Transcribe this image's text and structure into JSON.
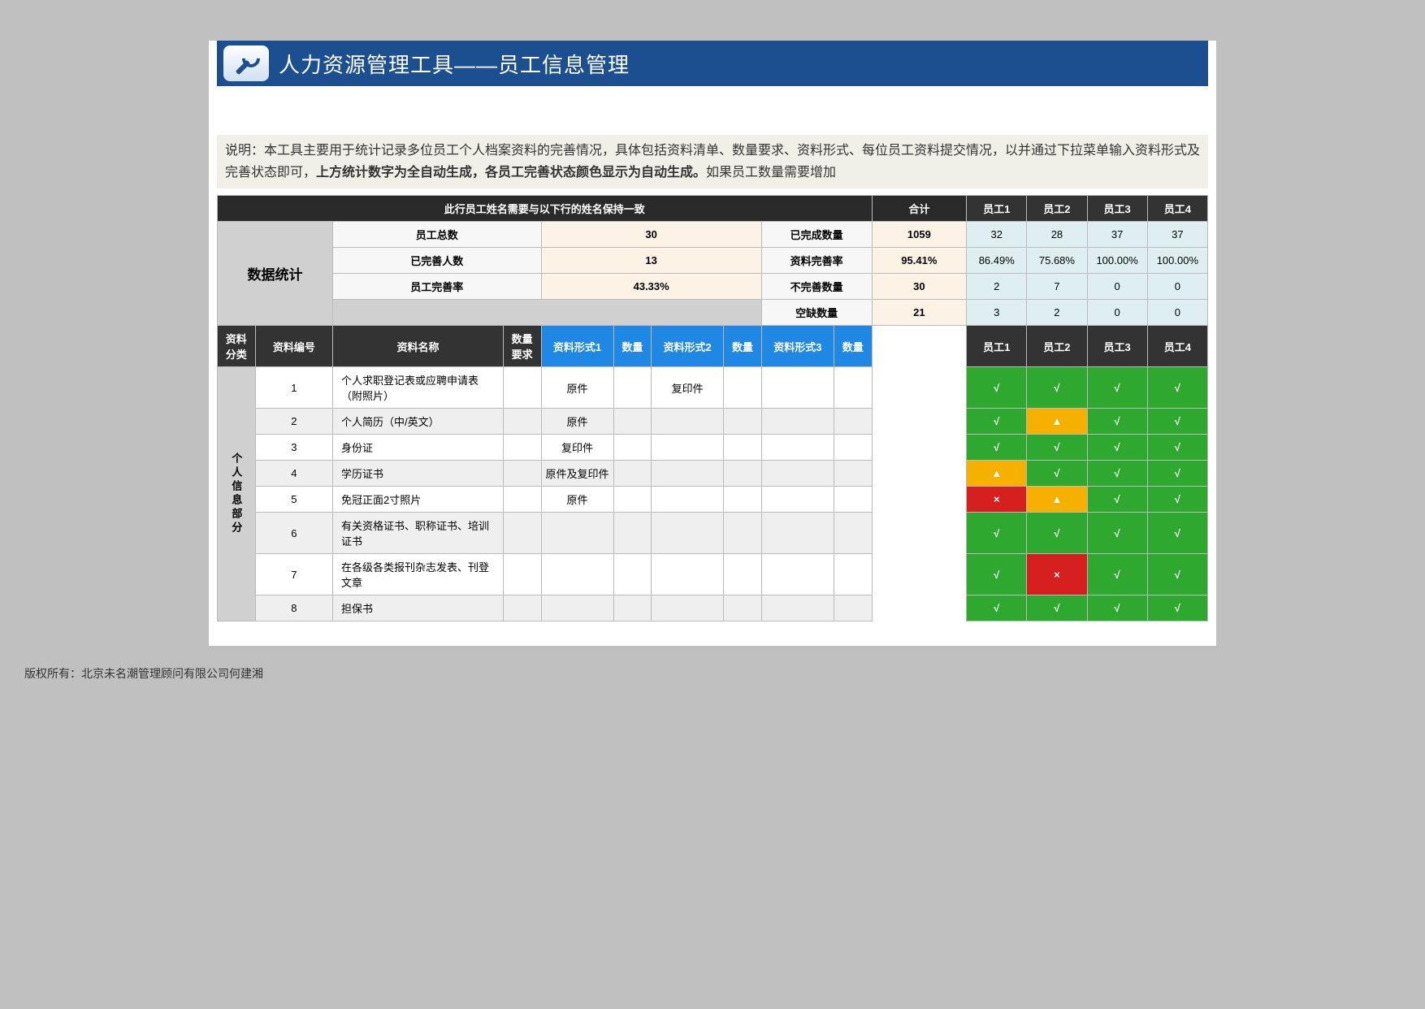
{
  "header": {
    "title": "人力资源管理工具——员工信息管理"
  },
  "description": {
    "part1": "说明：本工具主要用于统计记录多位员工个人档案资料的完善情况，具体包括资料清单、数量要求、资料形式、每位员工资料提交情况，以并通过下拉菜单输入资料形式及完善状态即可，",
    "part2": "上方统计数字为全自动生成，各员工完善状态颜色显示为自动生成。",
    "part3": "如果员工数量需要增加"
  },
  "topRow": {
    "leftLabel": "此行员工姓名需要与以下行的姓名保持一致",
    "totalLabel": "合计",
    "empHeaders": [
      "员工1",
      "员工2",
      "员工3",
      "员工4"
    ]
  },
  "stats": {
    "sectionLabel": "数据统计",
    "rows": [
      {
        "label1": "员工总数",
        "val1": "30",
        "label2": "已完成数量",
        "val2": "1059",
        "emp": [
          "32",
          "28",
          "37",
          "37"
        ]
      },
      {
        "label1": "已完善人数",
        "val1": "13",
        "label2": "资料完善率",
        "val2": "95.41%",
        "emp": [
          "86.49%",
          "75.68%",
          "100.00%",
          "100.00%"
        ]
      },
      {
        "label1": "员工完善率",
        "val1": "43.33%",
        "label2": "不完善数量",
        "val2": "30",
        "emp": [
          "2",
          "7",
          "0",
          "0"
        ]
      },
      {
        "label1": "",
        "val1": "",
        "label2": "空缺数量",
        "val2": "21",
        "emp": [
          "3",
          "2",
          "0",
          "0"
        ]
      }
    ]
  },
  "tableHeader": {
    "catCol": "资料分类",
    "idCol": "资料编号",
    "nameCol": "资料名称",
    "qtyReq": "数量要求",
    "form1": "资料形式1",
    "qty1": "数量",
    "form2": "资料形式2",
    "qty2": "数量",
    "form3": "资料形式3",
    "qty3": "数量",
    "empHeaders": [
      "员工1",
      "员工2",
      "员工3",
      "员工4"
    ]
  },
  "category": {
    "label": "个人信息部分"
  },
  "materials": [
    {
      "id": "1",
      "name": "个人求职登记表或应聘申请表（附照片）",
      "form1": "原件",
      "form2": "复印件",
      "status": [
        "ok",
        "ok",
        "ok",
        "ok"
      ]
    },
    {
      "id": "2",
      "name": "个人简历（中/英文）",
      "form1": "原件",
      "form2": "",
      "status": [
        "ok",
        "warn",
        "ok",
        "ok"
      ]
    },
    {
      "id": "3",
      "name": "身份证",
      "form1": "复印件",
      "form2": "",
      "status": [
        "ok",
        "ok",
        "ok",
        "ok"
      ]
    },
    {
      "id": "4",
      "name": "学历证书",
      "form1": "原件及复印件",
      "form2": "",
      "status": [
        "warn",
        "ok",
        "ok",
        "ok"
      ]
    },
    {
      "id": "5",
      "name": "免冠正面2寸照片",
      "form1": "原件",
      "form2": "",
      "status": [
        "bad",
        "warn",
        "ok",
        "ok"
      ]
    },
    {
      "id": "6",
      "name": "有关资格证书、职称证书、培训证书",
      "form1": "",
      "form2": "",
      "status": [
        "ok",
        "ok",
        "ok",
        "ok"
      ]
    },
    {
      "id": "7",
      "name": "在各级各类报刊杂志发表、刊登文章",
      "form1": "",
      "form2": "",
      "status": [
        "ok",
        "bad",
        "ok",
        "ok"
      ]
    },
    {
      "id": "8",
      "name": "担保书",
      "form1": "",
      "form2": "",
      "status": [
        "ok",
        "ok",
        "ok",
        "ok"
      ]
    }
  ],
  "statusSymbols": {
    "ok": "√",
    "warn": "▲",
    "bad": "×"
  },
  "columnWidths": {
    "cat": 44,
    "id": 90,
    "name": 198,
    "qtyReq": 44,
    "form1": 84,
    "qty1": 44,
    "form2": 84,
    "qty2": 44,
    "form3": 84,
    "qty3": 44,
    "total": 110,
    "emp": 70
  },
  "colors": {
    "headerBg": "#1b4f8f",
    "darkHdr": "#2a2a2a",
    "blueHdr": "#1f88e5",
    "valBg": "#fdf2e6",
    "empBg": "#dfeef0",
    "ok": "#2ea82e",
    "warn": "#f5b000",
    "bad": "#d62020"
  },
  "copyright": "版权所有：北京未名潮管理顾问有限公司何建湘"
}
